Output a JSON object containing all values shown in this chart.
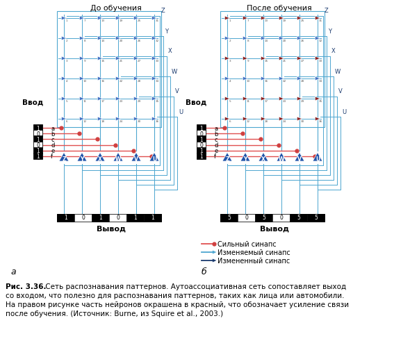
{
  "title_left": "До обучения",
  "title_right": "После обучения",
  "vvod": "Ввод",
  "input_labels": [
    "a",
    "b",
    "c",
    "d",
    "e",
    "f"
  ],
  "input_values_left": [
    "1",
    "0",
    "1",
    "0",
    "1",
    "1"
  ],
  "input_values_right": [
    "1",
    "0",
    "1",
    "0",
    "1",
    "1"
  ],
  "output_values_left": [
    "1",
    "0",
    "1",
    "0",
    "1",
    "1"
  ],
  "output_values_right": [
    "5",
    "0",
    "5",
    "0",
    "5",
    "5"
  ],
  "neuron_labels": [
    "Z",
    "Y",
    "X",
    "W",
    "V",
    "U"
  ],
  "grid_numbers": [
    [
      1,
      7,
      13,
      19,
      25,
      31
    ],
    [
      2,
      8,
      14,
      20,
      26,
      32
    ],
    [
      3,
      9,
      15,
      21,
      27,
      33
    ],
    [
      4,
      10,
      16,
      22,
      28,
      34
    ],
    [
      5,
      11,
      17,
      23,
      29,
      35
    ],
    [
      6,
      12,
      18,
      24,
      30,
      36
    ]
  ],
  "bg_color": "#ffffff",
  "blue_grid": "#4472c4",
  "blue_dark": "#1a3a6e",
  "blue_line": "#4da6d0",
  "red_line": "#e05050",
  "red_dot": "#d04040",
  "red_neuron": "#8b1a1a",
  "tri_blue": "#2255aa",
  "tri_red": "#aa2222",
  "legend_line1": "Сильный синапс",
  "legend_line2": "Изменяемый синапс",
  "legend_line3": "Измененный синапс",
  "caption_bold": "Рис. 3.36.",
  "caption_rest": " Сеть распознавания паттернов. Аутоассоциативная сеть сопоставляет выход",
  "caption_line2": "со входом, что полезно для распознавания паттернов, таких как лица или автомобили.",
  "caption_line3": "На правом рисунке часть нейронов окрашена в красный, что обозначает усиление связи",
  "caption_line4": "после обучения. (Источник: Burne, из Squire et al., 2003.)",
  "label_a": "а",
  "label_b": "б"
}
